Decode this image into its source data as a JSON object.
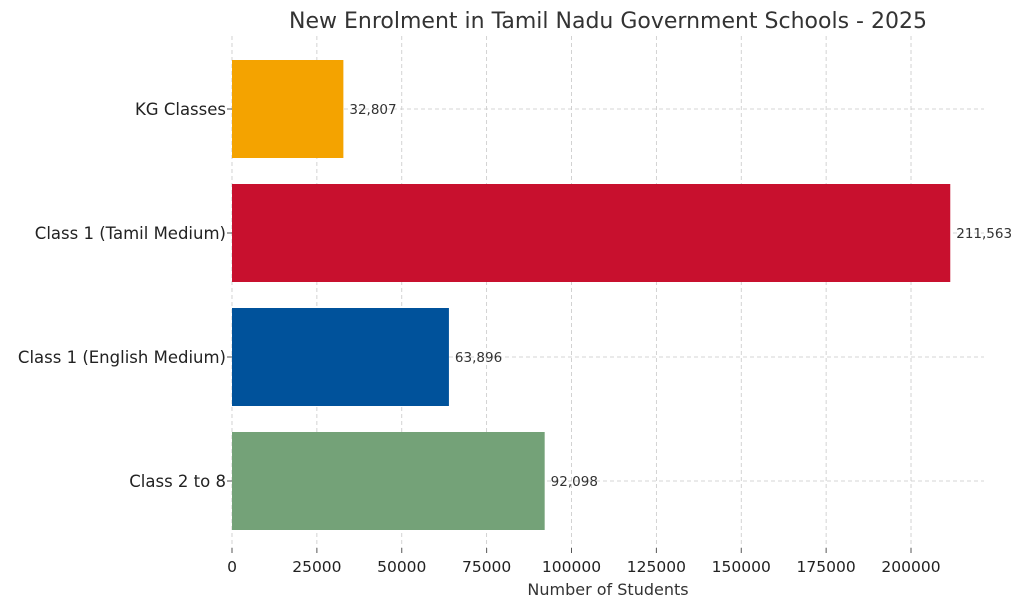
{
  "chart_data": {
    "type": "bar",
    "orientation": "horizontal",
    "title": "New Enrolment in Tamil Nadu Government Schools - 2025",
    "xlabel": "Number of Students",
    "ylabel": "",
    "categories": [
      "KG Classes",
      "Class 1 (Tamil Medium)",
      "Class 1 (English Medium)",
      "Class 2 to 8"
    ],
    "values": [
      32807,
      211563,
      63896,
      92098
    ],
    "value_labels": [
      "32,807",
      "211,563",
      "63,896",
      "92,098"
    ],
    "colors": [
      "#F4A300",
      "#C8102E",
      "#00529B",
      "#74A278"
    ],
    "xlim": [
      0,
      221500
    ],
    "xticks": [
      0,
      25000,
      50000,
      75000,
      100000,
      125000,
      150000,
      175000,
      200000
    ],
    "xtick_labels": [
      "0",
      "25000",
      "50000",
      "75000",
      "100000",
      "125000",
      "150000",
      "175000",
      "200000"
    ],
    "grid": true
  }
}
